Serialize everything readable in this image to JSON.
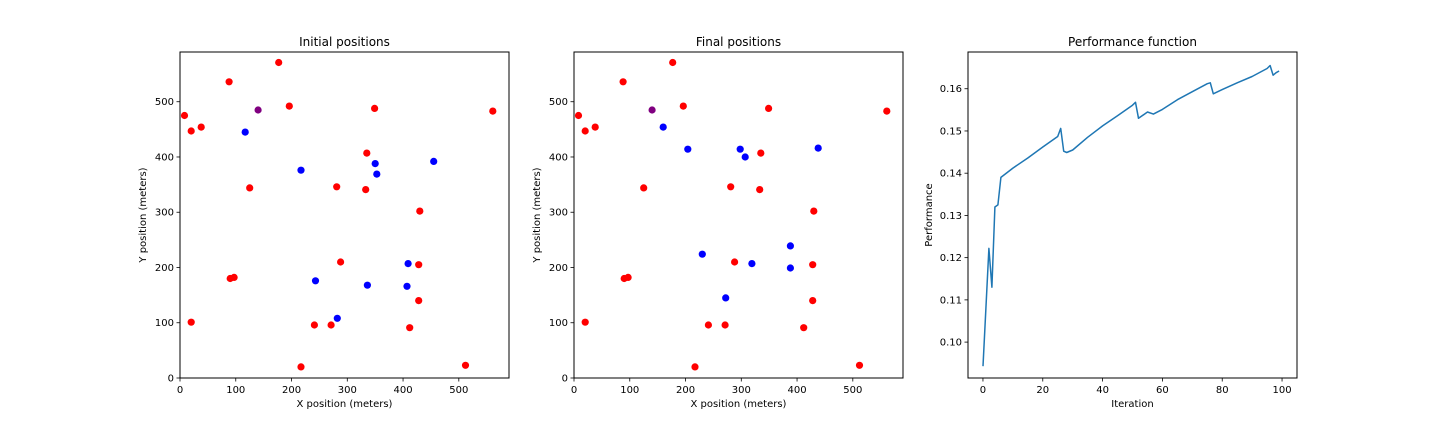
{
  "chart_data": [
    {
      "type": "scatter",
      "title": "Initial positions",
      "xlabel": "X position (meters)",
      "ylabel": "Y position (meters)",
      "xlim": [
        0,
        590
      ],
      "ylim": [
        0,
        590
      ],
      "xticks": [
        0,
        100,
        200,
        300,
        400,
        500
      ],
      "yticks": [
        0,
        100,
        200,
        300,
        400,
        500
      ],
      "grid": false,
      "series": [
        {
          "color": "#ff0000",
          "points": [
            [
              8,
              475
            ],
            [
              20,
              447
            ],
            [
              38,
              454
            ],
            [
              88,
              536
            ],
            [
              177,
              571
            ],
            [
              196,
              492
            ],
            [
              349,
              488
            ],
            [
              561,
              483
            ],
            [
              335,
              407
            ],
            [
              125,
              344
            ],
            [
              281,
              346
            ],
            [
              333,
              341
            ],
            [
              430,
              302
            ],
            [
              90,
              180
            ],
            [
              97,
              182
            ],
            [
              288,
              210
            ],
            [
              428,
              205
            ],
            [
              428,
              140
            ],
            [
              20,
              101
            ],
            [
              241,
              96
            ],
            [
              271,
              96
            ],
            [
              412,
              91
            ],
            [
              217,
              20
            ],
            [
              512,
              23
            ]
          ]
        },
        {
          "color": "#0000ff",
          "points": [
            [
              117,
              445
            ],
            [
              217,
              376
            ],
            [
              350,
              388
            ],
            [
              353,
              369
            ],
            [
              455,
              392
            ],
            [
              409,
              207
            ],
            [
              407,
              166
            ],
            [
              243,
              176
            ],
            [
              336,
              168
            ],
            [
              282,
              108
            ]
          ]
        },
        {
          "color": "#800080",
          "points": [
            [
              140,
              485
            ]
          ]
        }
      ]
    },
    {
      "type": "scatter",
      "title": "Final positions",
      "xlabel": "X position (meters)",
      "ylabel": "Y position (meters)",
      "xlim": [
        0,
        590
      ],
      "ylim": [
        0,
        590
      ],
      "xticks": [
        0,
        100,
        200,
        300,
        400,
        500
      ],
      "yticks": [
        0,
        100,
        200,
        300,
        400,
        500
      ],
      "grid": false,
      "series": [
        {
          "color": "#ff0000",
          "points": [
            [
              8,
              475
            ],
            [
              20,
              447
            ],
            [
              38,
              454
            ],
            [
              88,
              536
            ],
            [
              177,
              571
            ],
            [
              196,
              492
            ],
            [
              349,
              488
            ],
            [
              561,
              483
            ],
            [
              335,
              407
            ],
            [
              125,
              344
            ],
            [
              281,
              346
            ],
            [
              333,
              341
            ],
            [
              430,
              302
            ],
            [
              90,
              180
            ],
            [
              97,
              182
            ],
            [
              288,
              210
            ],
            [
              428,
              205
            ],
            [
              428,
              140
            ],
            [
              20,
              101
            ],
            [
              241,
              96
            ],
            [
              271,
              96
            ],
            [
              412,
              91
            ],
            [
              217,
              20
            ],
            [
              512,
              23
            ]
          ]
        },
        {
          "color": "#0000ff",
          "points": [
            [
              160,
              454
            ],
            [
              204,
              414
            ],
            [
              298,
              414
            ],
            [
              307,
              400
            ],
            [
              438,
              416
            ],
            [
              388,
              239
            ],
            [
              230,
              224
            ],
            [
              319,
              207
            ],
            [
              388,
              199
            ],
            [
              272,
              145
            ]
          ]
        },
        {
          "color": "#800080",
          "points": [
            [
              140,
              485
            ]
          ]
        }
      ]
    },
    {
      "type": "line",
      "title": "Performance function",
      "xlabel": "Iteration",
      "ylabel": "Performance",
      "xlim": [
        -5,
        105
      ],
      "ylim": [
        0.0915,
        0.1687
      ],
      "xticks": [
        0,
        20,
        40,
        60,
        80,
        100
      ],
      "yticks": [
        0.1,
        0.11,
        0.12,
        0.13,
        0.14,
        0.15,
        0.16
      ],
      "ytick_labels": [
        "0.10",
        "0.11",
        "0.12",
        "0.13",
        "0.14",
        "0.15",
        "0.16"
      ],
      "grid": false,
      "series": [
        {
          "color": "#1f77b4",
          "x": [
            0,
            1,
            2,
            3,
            4,
            5,
            6,
            10,
            15,
            20,
            25,
            26,
            27,
            28,
            30,
            35,
            40,
            45,
            50,
            51,
            52,
            55,
            57,
            60,
            65,
            70,
            75,
            76,
            77,
            80,
            85,
            90,
            95,
            96,
            97,
            98,
            99
          ],
          "y": [
            0.0943,
            0.108,
            0.1222,
            0.113,
            0.132,
            0.1325,
            0.139,
            0.1412,
            0.1436,
            0.1462,
            0.1487,
            0.1506,
            0.1452,
            0.1449,
            0.1455,
            0.1485,
            0.1512,
            0.1536,
            0.1561,
            0.1568,
            0.153,
            0.1545,
            0.154,
            0.1551,
            0.1574,
            0.1593,
            0.1612,
            0.1614,
            0.1588,
            0.1598,
            0.1614,
            0.1629,
            0.1648,
            0.1655,
            0.1632,
            0.1638,
            0.1642
          ]
        }
      ]
    }
  ]
}
